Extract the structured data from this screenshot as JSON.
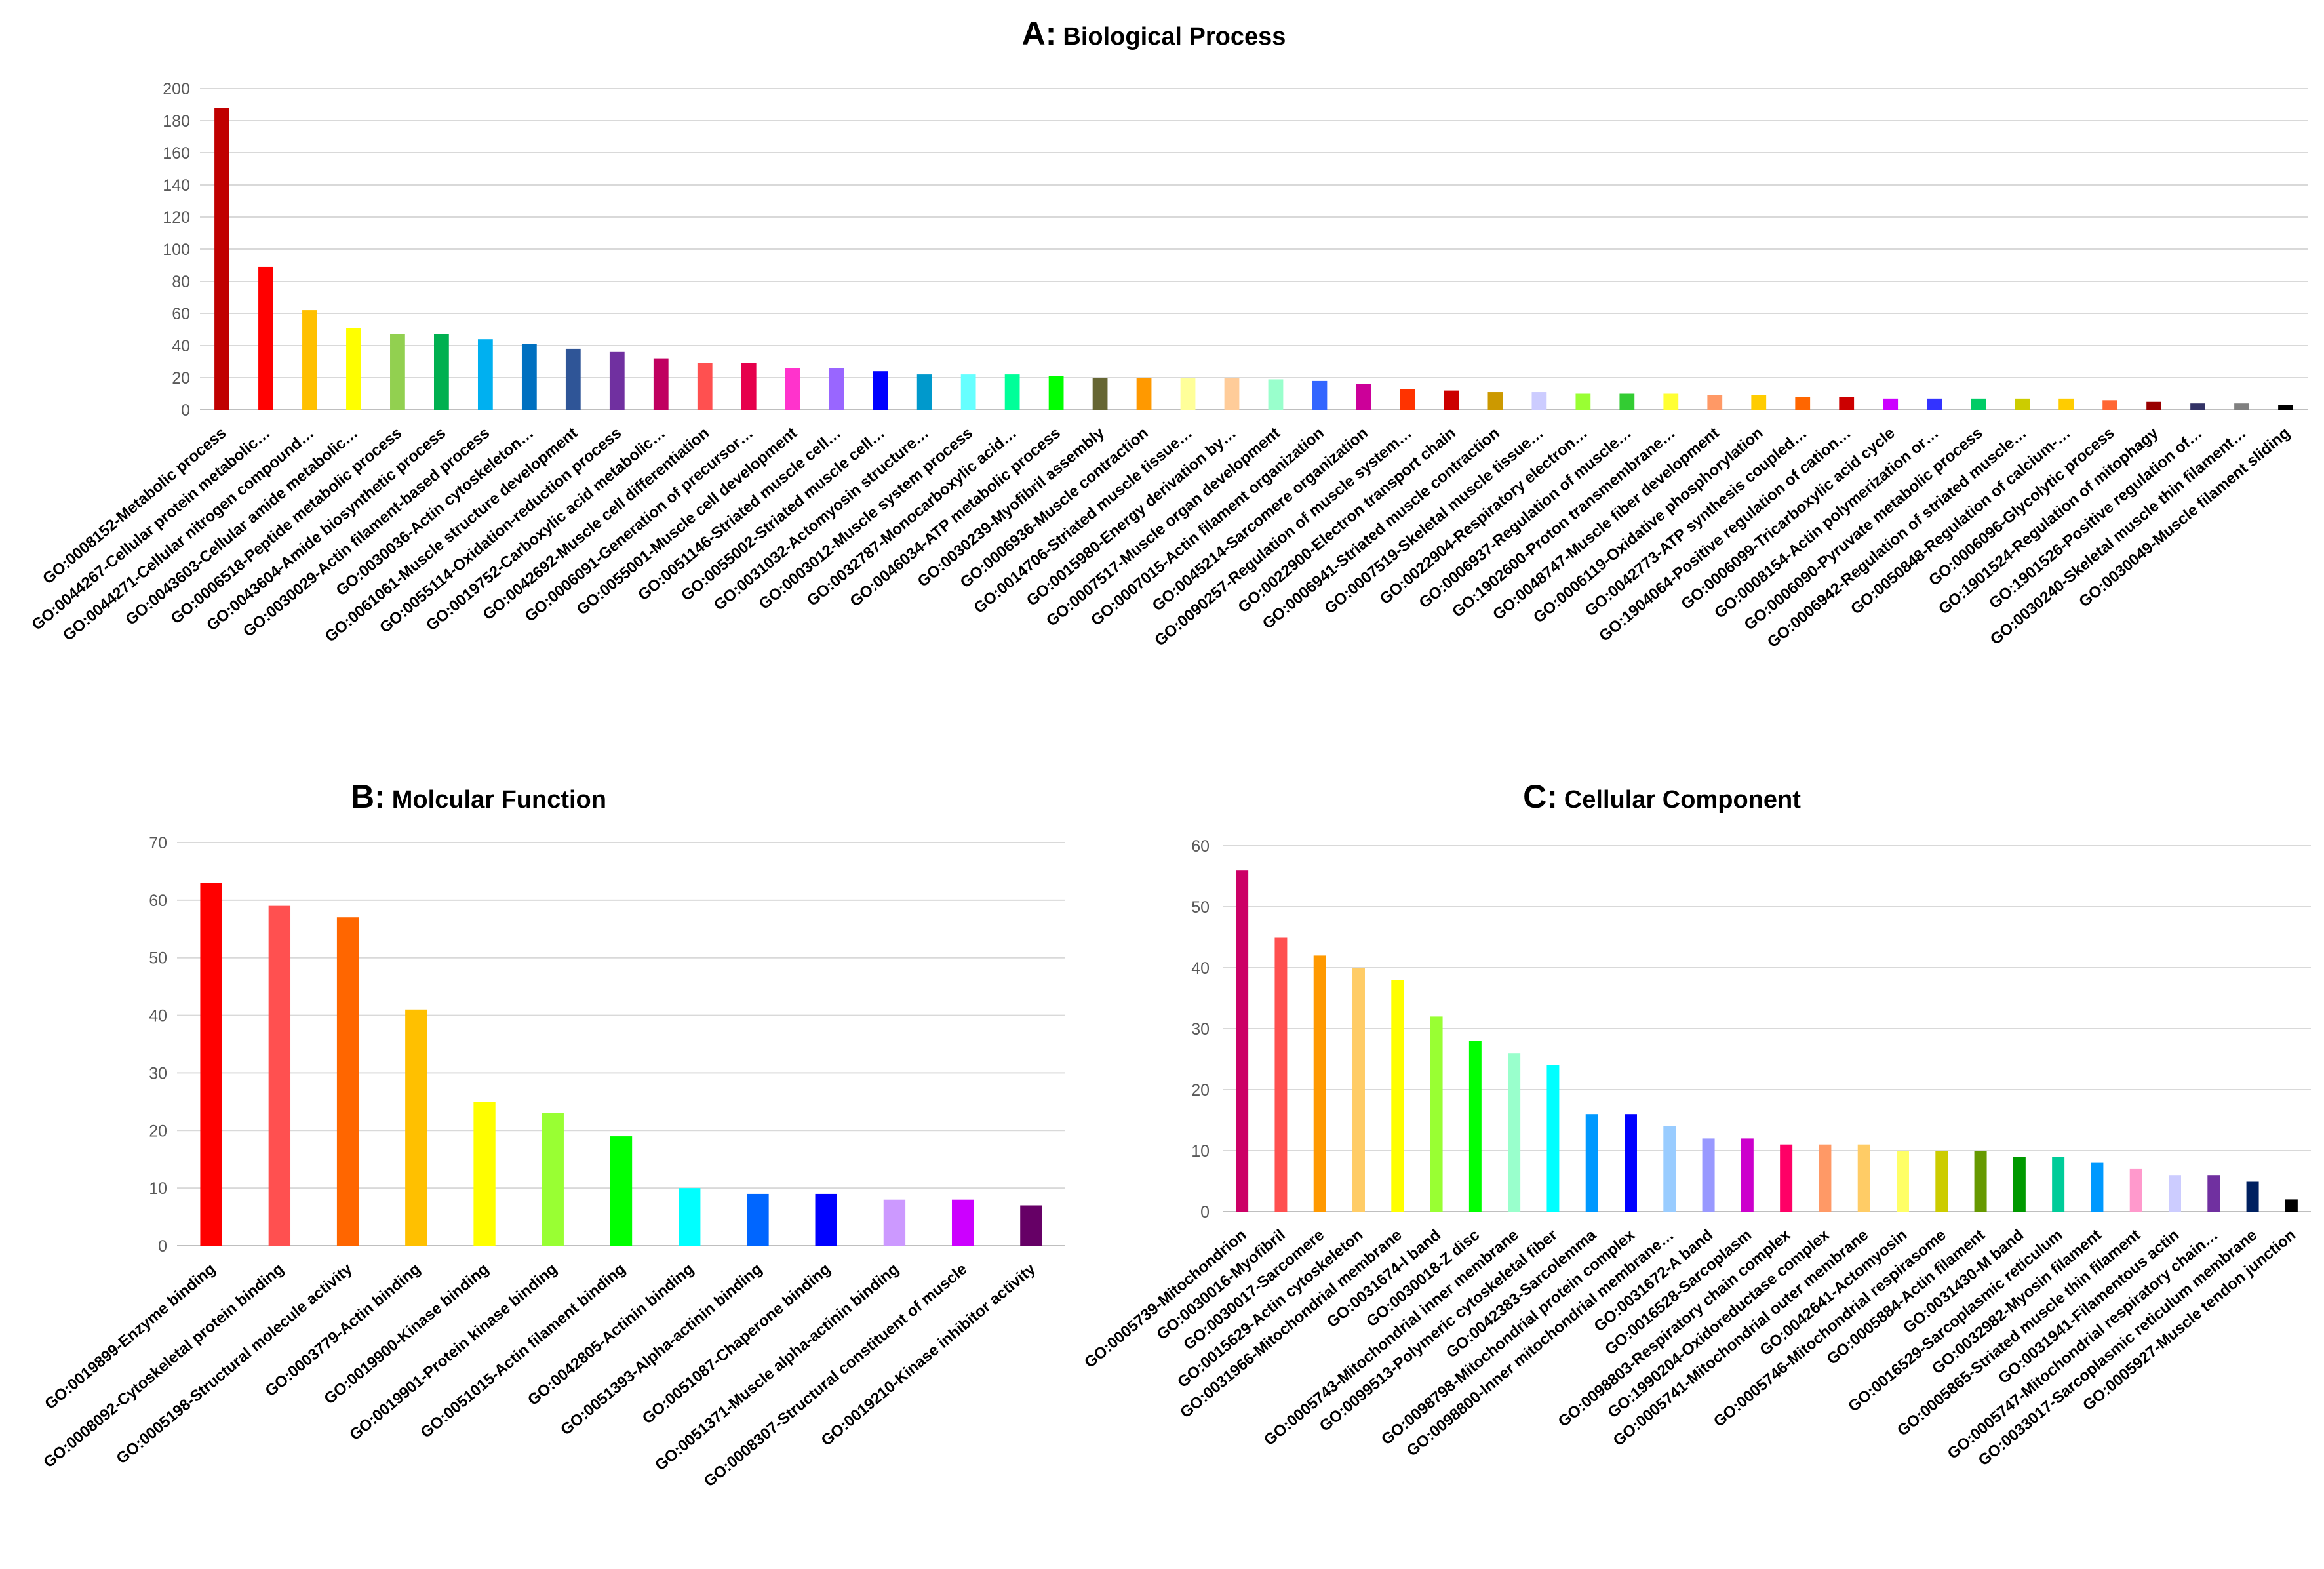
{
  "chart_data": [
    {
      "type": "bar",
      "id": "A",
      "title_letter": "A:",
      "title": "Biological Process",
      "xlabel": "",
      "ylabel": "",
      "ylim": [
        0,
        200
      ],
      "yticks": [
        "0",
        "20",
        "40",
        "60",
        "80",
        "100",
        "120",
        "140",
        "160",
        "180",
        "200"
      ],
      "grid": true,
      "categories": [
        "GO:0008152-Metabolic process",
        "GO:0044267-Cellular protein metabolic…",
        "GO:0044271-Cellular nitrogen compound…",
        "GO:0043603-Cellular amide metabolic…",
        "GO:0006518-Peptide metabolic process",
        "GO:0043604-Amide biosynthetic process",
        "GO:0030029-Actin filament-based process",
        "GO:0030036-Actin cytoskeleton…",
        "GO:0061061-Muscle structure development",
        "GO:0055114-Oxidation-reduction process",
        "GO:0019752-Carboxylic acid metabolic…",
        "GO:0042692-Muscle cell differentiation",
        "GO:0006091-Generation of precursor…",
        "GO:0055001-Muscle cell development",
        "GO:0051146-Striated muscle cell…",
        "GO:0055002-Striated muscle cell…",
        "GO:0031032-Actomyosin structure…",
        "GO:0003012-Muscle system process",
        "GO:0032787-Monocarboxylic acid…",
        "GO:0046034-ATP metabolic process",
        "GO:0030239-Myofibril assembly",
        "GO:0006936-Muscle contraction",
        "GO:0014706-Striated muscle tissue…",
        "GO:0015980-Energy derivation by…",
        "GO:0007517-Muscle organ development",
        "GO:0007015-Actin filament organization",
        "GO:0045214-Sarcomere organization",
        "GO:0090257-Regulation of muscle system…",
        "GO:0022900-Electron transport chain",
        "GO:0006941-Striated muscle contraction",
        "GO:0007519-Skeletal muscle tissue…",
        "GO:0022904-Respiratory electron…",
        "GO:0006937-Regulation of muscle…",
        "GO:1902600-Proton transmembrane…",
        "GO:0048747-Muscle fiber development",
        "GO:0006119-Oxidative phosphorylation",
        "GO:0042773-ATP synthesis coupled…",
        "GO:1904064-Positive regulation of cation…",
        "GO:0006099-Tricarboxylic acid cycle",
        "GO:0008154-Actin polymerization or…",
        "GO:0006090-Pyruvate metabolic process",
        "GO:0006942-Regulation of striated muscle…",
        "GO:0050848-Regulation of calcium-…",
        "GO:0006096-Glycolytic process",
        "GO:1901524-Regulation of mitophagy",
        "GO:1901526-Positive regulation of…",
        "GO:0030240-Skeletal muscle thin filament…",
        "GO:0030049-Muscle filament sliding"
      ],
      "values": [
        188,
        89,
        62,
        51,
        47,
        47,
        44,
        41,
        38,
        36,
        32,
        29,
        29,
        26,
        26,
        24,
        22,
        22,
        22,
        21,
        20,
        20,
        20,
        20,
        19,
        18,
        16,
        13,
        12,
        11,
        11,
        10,
        10,
        10,
        9,
        9,
        8,
        8,
        7,
        7,
        7,
        7,
        7,
        6,
        5,
        4,
        4,
        3
      ],
      "colors": [
        "#C00000",
        "#FF0000",
        "#FFC000",
        "#FFFF00",
        "#92D050",
        "#00B050",
        "#00B0F0",
        "#0070C0",
        "#2F5597",
        "#7030A0",
        "#C00060",
        "#FF5050",
        "#E6004C",
        "#FF33CC",
        "#9966FF",
        "#0000FF",
        "#0099CC",
        "#66FFFF",
        "#00FF99",
        "#00FF00",
        "#666633",
        "#FF9900",
        "#FFFF99",
        "#FFCC99",
        "#99FFCC",
        "#3366FF",
        "#CC0099",
        "#FF3300",
        "#CC0000",
        "#CC9900",
        "#CCCCFF",
        "#99FF33",
        "#33CC33",
        "#FFFF33",
        "#FF9966",
        "#FFCC00",
        "#FF6600",
        "#CC0000",
        "#CC00FF",
        "#3333FF",
        "#00CC66",
        "#CCCC00",
        "#FFCC00",
        "#FF6633",
        "#990000",
        "#333366",
        "#808080",
        "#000000"
      ]
    },
    {
      "type": "bar",
      "id": "B",
      "title_letter": "B:",
      "title": "Molcular Function",
      "xlabel": "",
      "ylabel": "",
      "ylim": [
        0,
        70
      ],
      "yticks": [
        "0",
        "10",
        "20",
        "30",
        "40",
        "50",
        "60",
        "70"
      ],
      "grid": true,
      "categories": [
        "GO:0019899-Enzyme binding",
        "GO:0008092-Cytoskeletal protein binding",
        "GO:0005198-Structural molecule activity",
        "GO:0003779-Actin binding",
        "GO:0019900-Kinase binding",
        "GO:0019901-Protein kinase binding",
        "GO:0051015-Actin filament binding",
        "GO:0042805-Actinin binding",
        "GO:0051393-Alpha-actinin binding",
        "GO:0051087-Chaperone binding",
        "GO:0051371-Muscle alpha-actinin binding",
        "GO:0008307-Structural constituent of muscle",
        "GO:0019210-Kinase inhibitor activity"
      ],
      "values": [
        63,
        59,
        57,
        41,
        25,
        23,
        19,
        10,
        9,
        9,
        8,
        8,
        7
      ],
      "colors": [
        "#FF0000",
        "#FF5050",
        "#FF6600",
        "#FFC000",
        "#FFFF00",
        "#99FF33",
        "#00FF00",
        "#00FFFF",
        "#0066FF",
        "#0000FF",
        "#CC99FF",
        "#CC00FF",
        "#660066"
      ]
    },
    {
      "type": "bar",
      "id": "C",
      "title_letter": "C:",
      "title": "Cellular Component",
      "xlabel": "",
      "ylabel": "",
      "ylim": [
        0,
        60
      ],
      "yticks": [
        "0",
        "10",
        "20",
        "30",
        "40",
        "50",
        "60"
      ],
      "grid": true,
      "categories": [
        "GO:0005739-Mitochondrion",
        "GO:0030016-Myofibril",
        "GO:0030017-Sarcomere",
        "GO:0015629-Actin cytoskeleton",
        "GO:0031966-Mitochondrial membrane",
        "GO:0031674-I band",
        "GO:0030018-Z disc",
        "GO:0005743-Mitochondrial inner membrane",
        "GO:0099513-Polymeric cytoskeletal fiber",
        "GO:0042383-Sarcolemma",
        "GO:0098798-Mitochondrial protein complex",
        "GO:0098800-Inner mitochondrial membrane…",
        "GO:0031672-A band",
        "GO:0016528-Sarcoplasm",
        "GO:0098803-Respiratory chain complex",
        "GO:1990204-Oxidoreductase complex",
        "GO:0005741-Mitochondrial outer membrane",
        "GO:0042641-Actomyosin",
        "GO:0005746-Mitochondrial respirasome",
        "GO:0005884-Actin filament",
        "GO:0031430-M band",
        "GO:0016529-Sarcoplasmic reticulum",
        "GO:0032982-Myosin filament",
        "GO:0005865-Striated muscle thin filament",
        "GO:0031941-Filamentous actin",
        "GO:0005747-Mitochondrial respiratory chain…",
        "GO:0033017-Sarcoplasmic reticulum membrane",
        "GO:0005927-Muscle tendon junction"
      ],
      "values": [
        56,
        45,
        42,
        40,
        38,
        32,
        28,
        26,
        24,
        16,
        16,
        14,
        12,
        12,
        11,
        11,
        11,
        10,
        10,
        10,
        9,
        9,
        8,
        7,
        6,
        6,
        5,
        2
      ],
      "colors": [
        "#CC0066",
        "#FF5050",
        "#FF9900",
        "#FFCC66",
        "#FFFF00",
        "#99FF33",
        "#00FF00",
        "#99FFCC",
        "#00FFFF",
        "#0099FF",
        "#0000FF",
        "#99CCFF",
        "#9999FF",
        "#CC00CC",
        "#FF0066",
        "#FF9966",
        "#FFCC66",
        "#FFFF66",
        "#CCCC00",
        "#669900",
        "#009900",
        "#00CC99",
        "#0099FF",
        "#FF99CC",
        "#CCCCFF",
        "#7030A0",
        "#002060",
        "#000000"
      ]
    }
  ]
}
